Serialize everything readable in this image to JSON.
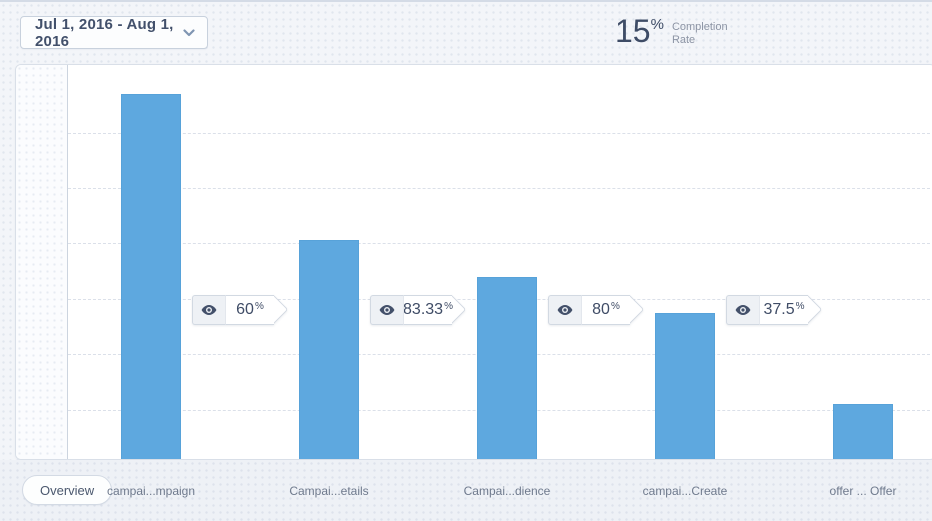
{
  "header": {
    "date_range_label": "Jul 1, 2016 - Aug 1, 2016",
    "completion_rate": {
      "value": "15",
      "unit": "%",
      "label": "Completion Rate"
    }
  },
  "chart_data": {
    "type": "bar",
    "title": "",
    "xlabel": "",
    "ylabel": "",
    "categories": [
      "campai...mpaign",
      "Campai...etails",
      "Campai...dience",
      "campai...Create",
      "offer ... Offer"
    ],
    "values": [
      100,
      60,
      50,
      40,
      15
    ],
    "ylim": [
      0,
      108
    ],
    "grid": "dashed-horizontal",
    "legend": "none",
    "bar_color": "#5ea8df",
    "conversions": [
      {
        "value": "60",
        "unit": "%"
      },
      {
        "value": "83.33",
        "unit": "%"
      },
      {
        "value": "80",
        "unit": "%"
      },
      {
        "value": "37.5",
        "unit": "%"
      }
    ],
    "overall_completion_rate": "15%"
  },
  "footer": {
    "overview_label": "Overview"
  },
  "icons": {
    "badge_icon": "eye-icon",
    "date_picker_icon": "chevron-down-icon"
  },
  "colors": {
    "bar": "#5ea8df",
    "navy_text": "#3e4c66",
    "muted_text": "#8c94a4",
    "page_bg": "#f3f5f9",
    "panel_bg": "#ffffff",
    "border": "#d9dfe8"
  }
}
